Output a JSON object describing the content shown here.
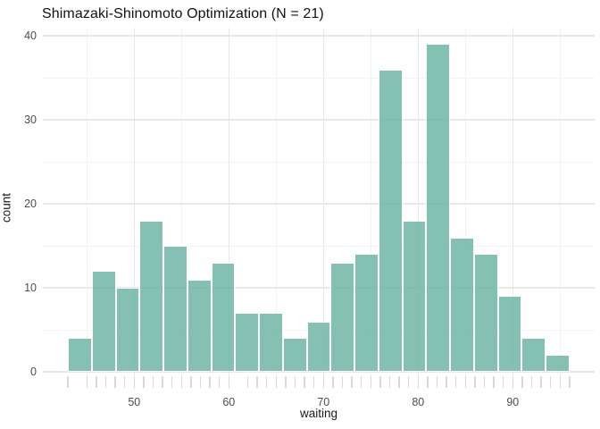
{
  "chart_data": {
    "type": "bar",
    "subtype": "histogram",
    "title": "Shimazaki-Shinomoto Optimization (N = 21)",
    "xlabel": "waiting",
    "ylabel": "count",
    "n_bins": 21,
    "bin_start": 43,
    "bin_width": 2.52381,
    "counts": [
      4,
      12,
      10,
      18,
      15,
      11,
      13,
      7,
      7,
      4,
      6,
      13,
      14,
      36,
      18,
      39,
      16,
      14,
      9,
      4,
      2
    ],
    "x_ticks": [
      50,
      60,
      70,
      80,
      90
    ],
    "x_minor_gridlines": [
      45,
      55,
      65,
      75,
      85,
      95
    ],
    "y_ticks": [
      0,
      10,
      20,
      30,
      40
    ],
    "y_minor_gridlines": [
      5,
      15,
      25,
      35
    ],
    "xlim": [
      40.35,
      98.65
    ],
    "ylim": [
      0,
      40.95
    ],
    "grid": true,
    "legend": "none",
    "rug_values": [
      43,
      45,
      46,
      47,
      48,
      49,
      50,
      51,
      52,
      53,
      54,
      55,
      56,
      57,
      58,
      59,
      60,
      62,
      63,
      64,
      65,
      66,
      67,
      68,
      69,
      70,
      71,
      72,
      73,
      74,
      75,
      76,
      77,
      78,
      79,
      80,
      81,
      82,
      83,
      84,
      85,
      86,
      87,
      88,
      89,
      90,
      91,
      92,
      93,
      94,
      95,
      96
    ]
  },
  "colors": {
    "bar_fill": "#69b3a2",
    "bar_fill_effective": "#84c0b3",
    "bar_border": "#ffffff",
    "grid_major": "#e8e8e8",
    "grid_minor": "#f3f3f3",
    "rug": "#d9d9d9",
    "axis_text": "#4d4d4d",
    "title_text": "#111111",
    "background": "#ffffff"
  }
}
